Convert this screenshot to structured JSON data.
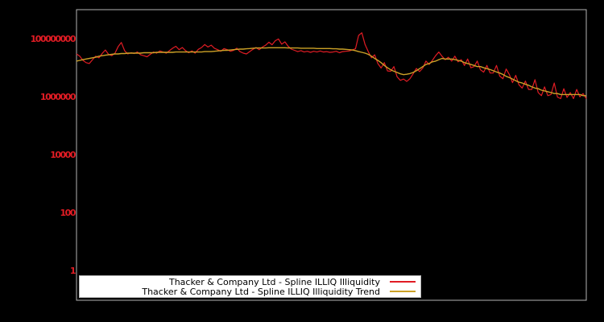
{
  "figure": {
    "background_color": "#000000",
    "plot_border_color": "#b4b4b4"
  },
  "y_axis": {
    "scale": "log",
    "tick_labels": [
      "100000000",
      "1000000",
      "10000",
      "100",
      "1"
    ],
    "tick_values": [
      100000000,
      1000000,
      10000,
      100,
      1
    ],
    "label_color": "#e11c24"
  },
  "x_axis": {
    "tick_labels": []
  },
  "legend": {
    "position": "bottom",
    "background_color": "#ffffff",
    "text_color": "#000000",
    "entries": [
      {
        "label": "Thacker & Company Ltd - Spline ILLIQ Illiquidity",
        "color": "#e11c24"
      },
      {
        "label": "Thacker & Company Ltd - Spline ILLIQ Illiquidity Trend",
        "color": "#cda227"
      }
    ]
  },
  "chart_data": {
    "type": "line",
    "yscale": "log",
    "ylim": [
      0.1,
      1000000000
    ],
    "grid": false,
    "background": "#000000",
    "legend_position": "lower center",
    "x_label": "",
    "y_label": "",
    "series": [
      {
        "name": "Thacker & Company Ltd - Spline ILLIQ Illiquidity",
        "color": "#e11c24",
        "stroke_width": 1.2,
        "values": [
          30000000.0,
          25000000.0,
          18000000.0,
          15000000.0,
          14000000.0,
          19000000.0,
          25000000.0,
          22000000.0,
          31000000.0,
          41000000.0,
          29000000.0,
          26000000.0,
          32000000.0,
          54000000.0,
          74000000.0,
          39000000.0,
          30000000.0,
          33000000.0,
          31000000.0,
          35000000.0,
          28000000.0,
          26000000.0,
          24000000.0,
          29000000.0,
          35000000.0,
          32000000.0,
          38000000.0,
          35000000.0,
          32000000.0,
          39000000.0,
          47000000.0,
          55000000.0,
          42000000.0,
          50000000.0,
          39000000.0,
          33000000.0,
          38000000.0,
          32000000.0,
          43000000.0,
          50000000.0,
          63000000.0,
          52000000.0,
          60000000.0,
          47000000.0,
          42000000.0,
          37000000.0,
          46000000.0,
          42000000.0,
          37000000.0,
          40000000.0,
          47000000.0,
          36000000.0,
          32000000.0,
          30000000.0,
          36000000.0,
          43000000.0,
          50000000.0,
          42000000.0,
          52000000.0,
          60000000.0,
          76000000.0,
          62000000.0,
          85000000.0,
          98000000.0,
          65000000.0,
          78000000.0,
          55000000.0,
          44000000.0,
          40000000.0,
          36000000.0,
          39000000.0,
          35000000.0,
          37000000.0,
          34000000.0,
          37000000.0,
          35000000.0,
          38000000.0,
          35000000.0,
          36000000.0,
          34000000.0,
          35000000.0,
          37000000.0,
          33000000.0,
          36000000.0,
          37000000.0,
          38000000.0,
          41000000.0,
          45000000.0,
          130000000.0,
          160000000.0,
          63000000.0,
          36000000.0,
          22000000.0,
          28000000.0,
          14000000.0,
          9800000.0,
          15000000.0,
          7800000.0,
          7600000.0,
          11000000.0,
          4900000.0,
          3700000.0,
          4100000.0,
          3400000.0,
          4200000.0,
          6200000.0,
          9500000.0,
          7400000.0,
          9800000.0,
          17000000.0,
          13000000.0,
          18000000.0,
          26000000.0,
          35000000.0,
          25000000.0,
          19000000.0,
          23000000.0,
          17000000.0,
          25000000.0,
          16000000.0,
          19000000.0,
          12000000.0,
          20000000.0,
          10000000.0,
          11000000.0,
          17000000.0,
          8500000.0,
          7100000.0,
          12000000.0,
          6600000.0,
          6600000.0,
          12000000.0,
          5200000.0,
          4200000.0,
          9100000.0,
          5800000.0,
          3100000.0,
          5500000.0,
          2600000.0,
          2000000.0,
          3500000.0,
          1800000.0,
          1800000.0,
          3900000.0,
          1400000.0,
          1100000.0,
          2200000.0,
          1100000.0,
          1200000.0,
          3000000.0,
          980000.0,
          870000.0,
          1900000.0,
          950000.0,
          1400000.0,
          870000.0,
          1800000.0,
          1000000.0,
          1300000.0,
          870000.0
        ]
      },
      {
        "name": "Thacker & Company Ltd - Spline ILLIQ Illiquidity Trend",
        "color": "#cda227",
        "stroke_width": 1.4,
        "values": [
          17000000.0,
          18000000.0,
          19000000.0,
          20000000.0,
          21000000.0,
          22000000.0,
          23000000.0,
          25000000.0,
          26000000.0,
          27000000.0,
          28000000.0,
          29000000.0,
          30000000.0,
          30000000.0,
          31000000.0,
          31000000.0,
          32000000.0,
          32000000.0,
          32000000.0,
          32000000.0,
          32000000.0,
          33000000.0,
          33000000.0,
          33000000.0,
          33000000.0,
          34000000.0,
          34000000.0,
          34000000.0,
          34000000.0,
          34000000.0,
          34000000.0,
          35000000.0,
          35000000.0,
          35000000.0,
          35000000.0,
          35000000.0,
          35000000.0,
          35000000.0,
          35000000.0,
          35000000.0,
          36000000.0,
          36000000.0,
          36000000.0,
          37000000.0,
          38000000.0,
          39000000.0,
          40000000.0,
          40000000.0,
          41000000.0,
          42000000.0,
          43000000.0,
          44000000.0,
          44000000.0,
          45000000.0,
          46000000.0,
          47000000.0,
          48000000.0,
          48000000.0,
          48000000.0,
          48000000.0,
          49000000.0,
          49000000.0,
          49000000.0,
          49000000.0,
          49000000.0,
          49000000.0,
          48000000.0,
          48000000.0,
          48000000.0,
          48000000.0,
          47000000.0,
          47000000.0,
          47000000.0,
          47000000.0,
          47000000.0,
          46000000.0,
          46000000.0,
          46000000.0,
          46000000.0,
          46000000.0,
          45000000.0,
          45000000.0,
          44000000.0,
          44000000.0,
          43000000.0,
          42000000.0,
          41000000.0,
          39000000.0,
          36000000.0,
          34000000.0,
          32000000.0,
          29000000.0,
          25000000.0,
          21000000.0,
          18000000.0,
          15000000.0,
          12000000.0,
          10000000.0,
          8500000.0,
          7600000.0,
          6900000.0,
          6200000.0,
          5800000.0,
          6000000.0,
          6300000.0,
          6900000.0,
          7900000.0,
          9300000.0,
          11000000.0,
          13000000.0,
          14000000.0,
          16000000.0,
          17000000.0,
          19000000.0,
          21000000.0,
          20000000.0,
          20000000.0,
          20000000.0,
          19000000.0,
          18000000.0,
          17000000.0,
          15000000.0,
          14000000.0,
          13000000.0,
          12000000.0,
          11000000.0,
          11000000.0,
          10000000.0,
          9300000.0,
          8700000.0,
          7900000.0,
          7200000.0,
          6600000.0,
          5900000.0,
          5100000.0,
          4600000.0,
          4100000.0,
          3600000.0,
          3200000.0,
          3000000.0,
          2700000.0,
          2500000.0,
          2200000.0,
          2000000.0,
          1900000.0,
          1700000.0,
          1600000.0,
          1500000.0,
          1400000.0,
          1300000.0,
          1300000.0,
          1200000.0,
          1200000.0,
          1200000.0,
          1200000.0,
          1200000.0,
          1200000.0,
          1200000.0,
          1100000.0,
          1100000.0
        ]
      }
    ]
  }
}
